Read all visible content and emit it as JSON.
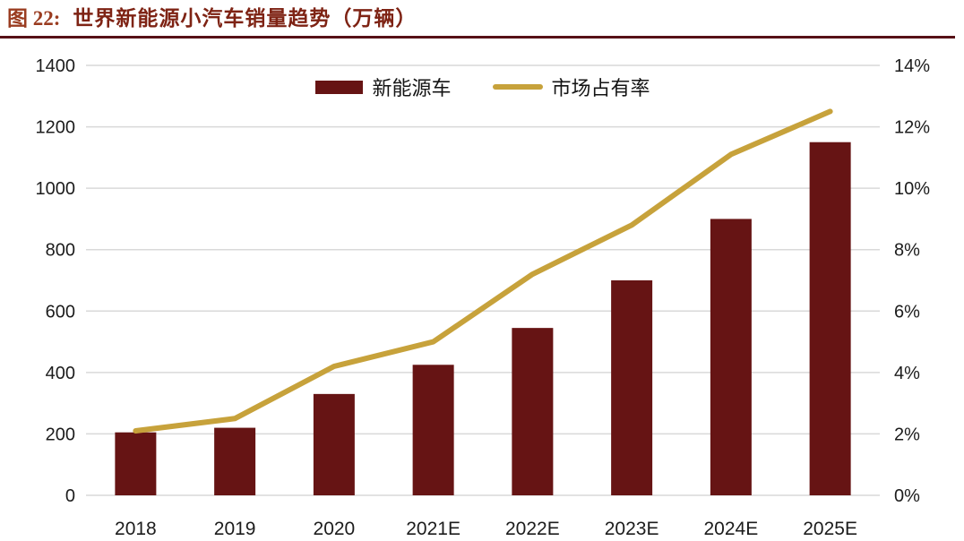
{
  "title": {
    "label": "图 22:",
    "text": "世界新能源小汽车销量趋势（万辆）"
  },
  "colors": {
    "bar": "#661414",
    "line": "#c7a23b",
    "grid": "#d9d9d9",
    "axis_text": "#1c1c1c",
    "title_label": "#9a3c20",
    "title_text": "#7e2314",
    "rule": "#571117"
  },
  "chart_data": {
    "type": "bar",
    "subtype": "bar+line dual axis",
    "title": "世界新能源小汽车销量趋势（万辆）",
    "categories": [
      "2018",
      "2019",
      "2020",
      "2021E",
      "2022E",
      "2023E",
      "2024E",
      "2025E"
    ],
    "series": [
      {
        "name": "新能源车",
        "type": "bar",
        "axis": "left",
        "values": [
          205,
          220,
          330,
          425,
          545,
          700,
          900,
          1150
        ]
      },
      {
        "name": "市场占有率",
        "type": "line",
        "axis": "right",
        "values_pct": [
          2.1,
          2.5,
          4.2,
          5.0,
          7.2,
          8.8,
          11.1,
          12.5
        ]
      }
    ],
    "left_axis": {
      "min": 0,
      "max": 1400,
      "step": 200,
      "ticks": [
        "0",
        "200",
        "400",
        "600",
        "800",
        "1000",
        "1200",
        "1400"
      ]
    },
    "right_axis": {
      "min": 0,
      "max": 14,
      "step": 2,
      "ticks": [
        "0%",
        "2%",
        "4%",
        "6%",
        "8%",
        "10%",
        "12%",
        "14%"
      ]
    },
    "grid": true,
    "legend_position": "top-center"
  }
}
